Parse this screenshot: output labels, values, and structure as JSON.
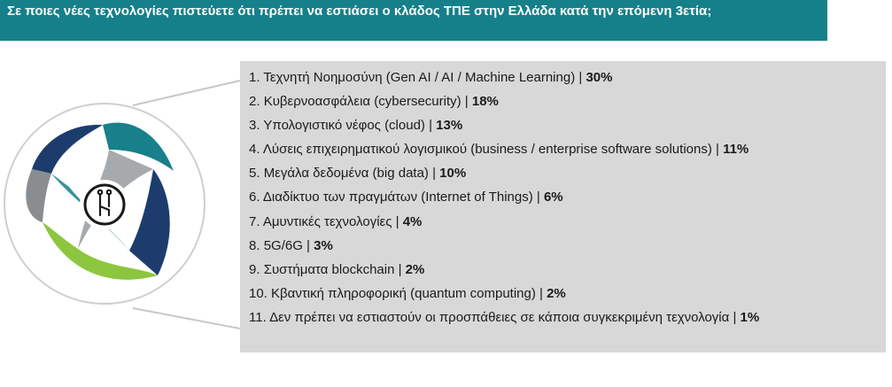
{
  "header": {
    "title": "Σε ποιες νέες τεχνολογίες πιστεύετε ότι πρέπει να εστιάσει ο κλάδος ΤΠΕ στην Ελλάδα κατά την επόμενη 3ετία;"
  },
  "items": [
    {
      "num": "1.",
      "label": "Τεχνητή Νοημοσύνη (Gen AI / AI / Machine Learning) | ",
      "pct": "30%"
    },
    {
      "num": "2.",
      "label": "Κυβερνοασφάλεια (cybersecurity) | ",
      "pct": "18%"
    },
    {
      "num": "3.",
      "label": "Υπολογιστικό νέφος (cloud) | ",
      "pct": "13%"
    },
    {
      "num": "4.",
      "label": "Λύσεις επιχειρηματικού λογισμικού (business / enterprise software solutions) | ",
      "pct": "11%"
    },
    {
      "num": "5.",
      "label": "Μεγάλα δεδομένα (big data) | ",
      "pct": "10%"
    },
    {
      "num": "6.",
      "label": "Διαδίκτυο των πραγμάτων (Internet of Things) | ",
      "pct": "6%"
    },
    {
      "num": "7.",
      "label": "Αμυντικές τεχνολογίες | ",
      "pct": "4%"
    },
    {
      "num": "8.",
      "label": "5G/6G | ",
      "pct": "3%"
    },
    {
      "num": "9.",
      "label": "Συστήματα blockchain | ",
      "pct": "2%"
    },
    {
      "num": "10.",
      "label": "Κβαντική πληροφορική (quantum computing) | ",
      "pct": "2%"
    },
    {
      "num": "11.",
      "label": "Δεν πρέπει να εστιαστούν οι προσπάθειες σε κάποια συγκεκριμένη τεχνολογία | ",
      "pct": "1%"
    }
  ],
  "icons": {
    "emblem": "ribbon-star-emblem",
    "center": "circuit-icon"
  },
  "colors": {
    "header_bg": "#15808a",
    "list_bg": "#d8d8d8",
    "ribbon_green": "#8cc63f",
    "ribbon_teal": "#17808a",
    "ribbon_navy": "#1d3c6e",
    "ribbon_gray": "#8a8d90"
  }
}
